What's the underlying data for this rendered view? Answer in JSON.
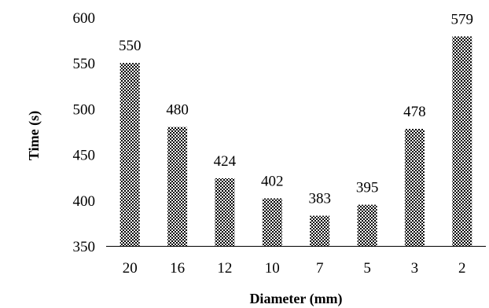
{
  "chart_data": {
    "type": "bar",
    "title": "",
    "xlabel": "Diameter (mm)",
    "ylabel": "Time (s)",
    "categories": [
      "20",
      "16",
      "12",
      "10",
      "7",
      "5",
      "3",
      "2"
    ],
    "values": [
      550,
      480,
      424,
      402,
      383,
      395,
      478,
      579
    ],
    "ylim": [
      350,
      600
    ],
    "yticks": [
      350,
      400,
      450,
      500,
      550,
      600
    ],
    "grid": false,
    "legend": "none",
    "bar_pattern": "checkered",
    "colors": {
      "bar_dark": "#000000",
      "bar_light": "#ffffff",
      "axis": "#000000"
    }
  }
}
